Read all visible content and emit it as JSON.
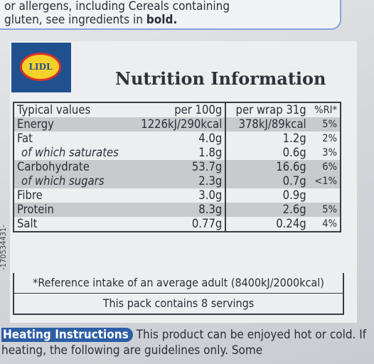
{
  "allergen_note": {
    "line1": "or allergens, including Cereals containing",
    "line2": "gluten, see ingredients in",
    "bold": "bold."
  },
  "logo": "LIDL",
  "side_code": "-170534431-",
  "title": "Nutrition Information",
  "table": {
    "header": [
      "Typical values",
      "per 100g",
      "per wrap 31g",
      "%RI*"
    ],
    "rows": [
      [
        "Energy",
        "1226kJ/290kcal",
        "378kJ/89kcal",
        "5%"
      ],
      [
        "Fat",
        "4.0g",
        "1.2g",
        "2%"
      ],
      [
        "of which saturates",
        "1.8g",
        "0.6g",
        "3%"
      ],
      [
        "Carbohydrate",
        "53.7g",
        "16.6g",
        "6%"
      ],
      [
        "of which sugars",
        "2.3g",
        "0.7g",
        "<1%"
      ],
      [
        "Fibre",
        "3.0g",
        "0.9g"
      ],
      [
        "Protein",
        "8.3g",
        "2.6g",
        "5%"
      ],
      [
        "Salt",
        "0.77g",
        "0.24g",
        "4%"
      ]
    ]
  },
  "footnote": "*Reference intake of an average adult (8400kJ/2000kcal)",
  "servings": "This pack contains 8 servings",
  "heating": {
    "badge": "Heating Instructions",
    "text": "This product can be enjoyed hot or cold. If heating, the following are guidelines only. Some"
  }
}
